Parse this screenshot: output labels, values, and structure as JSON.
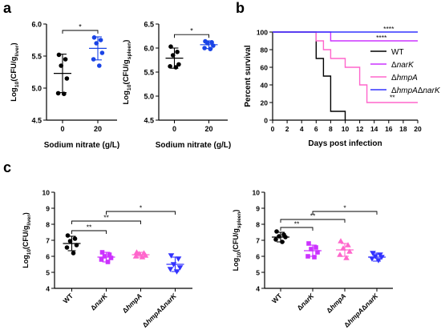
{
  "panel_letters": {
    "a": "a",
    "b": "b",
    "c": "c"
  },
  "colors": {
    "wt": "#000000",
    "narK": "#cc33ff",
    "hmpA": "#ff66cc",
    "hmpAnarK": "#3333ff",
    "mixed": "#1a44e6"
  },
  "chart_data": [
    {
      "id": "a_liver",
      "type": "scatter",
      "title": "",
      "xlabel": "Sodium nitrate (g/L)",
      "ylabel": {
        "prefix": "Log",
        "prefix_sub": "10",
        "main": "(CFU/g",
        "sub": "liver",
        "suffix": ")"
      },
      "categories": [
        "0",
        "20"
      ],
      "ylim": [
        4.5,
        6.0
      ],
      "yticks": [
        "4.5",
        "5.0",
        "5.5",
        "6.0"
      ],
      "series": [
        {
          "category": "0",
          "color": "#000000",
          "mean": 5.23,
          "sd": 0.3,
          "points": [
            5.52,
            5.45,
            5.35,
            5.15,
            4.92,
            4.91
          ]
        },
        {
          "category": "20",
          "color": "#1a44e6",
          "mean": 5.62,
          "sd": 0.18,
          "points": [
            5.79,
            5.75,
            5.7,
            5.55,
            5.45,
            5.35
          ]
        }
      ],
      "annotations": [
        {
          "from": "0",
          "to": "20",
          "y": 5.9,
          "text": "*"
        }
      ]
    },
    {
      "id": "a_spleen",
      "type": "scatter",
      "title": "",
      "xlabel": "Sodium nitrate (g/L)",
      "ylabel": {
        "prefix": "Log",
        "prefix_sub": "10",
        "main": "(CFU/g",
        "sub": "spleen",
        "suffix": ")"
      },
      "categories": [
        "0",
        "20"
      ],
      "ylim": [
        4.5,
        6.5
      ],
      "yticks": [
        "4.5",
        "5.0",
        "5.5",
        "6.0",
        "6.5"
      ],
      "series": [
        {
          "category": "0",
          "color": "#000000",
          "mean": 5.79,
          "sd": 0.21,
          "points": [
            6.03,
            5.92,
            5.85,
            5.66,
            5.62,
            5.6
          ]
        },
        {
          "category": "20",
          "color": "#1a44e6",
          "mean": 6.07,
          "sd": 0.08,
          "points": [
            6.14,
            6.12,
            6.1,
            6.05,
            6.0,
            5.98
          ]
        }
      ],
      "annotations": [
        {
          "from": "0",
          "to": "20",
          "y": 6.28,
          "text": "*"
        }
      ]
    },
    {
      "id": "b_survival",
      "type": "line",
      "title": "",
      "xlabel": "Days post infection",
      "ylabel": "Percent survival",
      "xlim": [
        0,
        20
      ],
      "ylim": [
        0,
        100
      ],
      "xticks": [
        "0",
        "2",
        "4",
        "6",
        "8",
        "10",
        "12",
        "14",
        "16",
        "18",
        "20"
      ],
      "yticks": [
        "0",
        "20",
        "40",
        "60",
        "80",
        "100"
      ],
      "series": [
        {
          "name": "WT",
          "color": "#000000",
          "steps": [
            [
              0,
              100
            ],
            [
              6,
              100
            ],
            [
              6,
              70
            ],
            [
              7,
              70
            ],
            [
              7,
              50
            ],
            [
              8,
              50
            ],
            [
              8,
              10
            ],
            [
              10,
              10
            ],
            [
              10,
              0
            ]
          ]
        },
        {
          "name": "ΔnarK",
          "color": "#cc33ff",
          "steps": [
            [
              0,
              100
            ],
            [
              8,
              100
            ],
            [
              8,
              90
            ],
            [
              20,
              90
            ]
          ]
        },
        {
          "name": "ΔhmpA",
          "color": "#ff66cc",
          "steps": [
            [
              0,
              100
            ],
            [
              6,
              100
            ],
            [
              6,
              90
            ],
            [
              7,
              90
            ],
            [
              7,
              80
            ],
            [
              8,
              80
            ],
            [
              8,
              70
            ],
            [
              10,
              70
            ],
            [
              10,
              60
            ],
            [
              12,
              60
            ],
            [
              12,
              40
            ],
            [
              13,
              40
            ],
            [
              13,
              20
            ],
            [
              20,
              20
            ]
          ]
        },
        {
          "name": "ΔhmpAΔnarK",
          "color": "#3333ff",
          "steps": [
            [
              0,
              100
            ],
            [
              20,
              100
            ]
          ]
        }
      ],
      "annotations": [
        {
          "text": "****",
          "x": 16,
          "y": 101
        },
        {
          "text": "****",
          "x": 15,
          "y": 91
        },
        {
          "text": "**",
          "x": 16.5,
          "y": 23
        }
      ]
    },
    {
      "id": "c_liver",
      "type": "scatter",
      "title": "",
      "ylabel": {
        "prefix": "Log",
        "prefix_sub": "10",
        "main": "(CFU/g",
        "sub": "liver",
        "suffix": ")"
      },
      "categories": [
        "WT",
        "ΔnarK",
        "ΔhmpA",
        "ΔhmpAΔnarK"
      ],
      "ylim": [
        4,
        10
      ],
      "yticks": [
        "4",
        "5",
        "6",
        "7",
        "8",
        "9",
        "10"
      ],
      "series": [
        {
          "category": "WT",
          "color": "#000000",
          "marker": "circle",
          "mean": 6.8,
          "sd": 0.45,
          "points": [
            7.3,
            7.1,
            6.95,
            6.7,
            6.55,
            6.2
          ]
        },
        {
          "category": "ΔnarK",
          "color": "#cc33ff",
          "marker": "square",
          "mean": 5.95,
          "sd": 0.3,
          "points": [
            6.25,
            6.1,
            6.0,
            5.9,
            5.8,
            5.65
          ]
        },
        {
          "category": "ΔhmpA",
          "color": "#ff66cc",
          "marker": "triangle-up",
          "mean": 6.1,
          "sd": 0.15,
          "points": [
            6.25,
            6.2,
            6.15,
            6.05,
            6.0,
            5.95
          ]
        },
        {
          "category": "ΔhmpAΔnarK",
          "color": "#3333ff",
          "marker": "triangle-down",
          "mean": 5.5,
          "sd": 0.45,
          "points": [
            6.05,
            5.85,
            5.5,
            5.3,
            5.2,
            5.05
          ]
        }
      ],
      "annotations": [
        {
          "from": "WT",
          "to": "ΔnarK",
          "y": 7.6,
          "text": "**"
        },
        {
          "from": "WT",
          "to": "ΔhmpA",
          "y": 8.2,
          "text": "**"
        },
        {
          "from": "ΔnarK",
          "to": "ΔhmpAΔnarK",
          "y": 8.8,
          "text": "*"
        }
      ]
    },
    {
      "id": "c_spleen",
      "type": "scatter",
      "title": "",
      "ylabel": {
        "prefix": "Log",
        "prefix_sub": "10",
        "main": "(CFU/g",
        "sub": "spleen",
        "suffix": ")"
      },
      "categories": [
        "WT",
        "ΔnarK",
        "ΔhmpA",
        "ΔhmpAΔnarK"
      ],
      "ylim": [
        4,
        10
      ],
      "yticks": [
        "4",
        "5",
        "6",
        "7",
        "8",
        "9",
        "10"
      ],
      "series": [
        {
          "category": "WT",
          "color": "#000000",
          "marker": "circle",
          "mean": 7.2,
          "sd": 0.3,
          "points": [
            7.55,
            7.35,
            7.25,
            7.2,
            7.05,
            6.9
          ]
        },
        {
          "category": "ΔnarK",
          "color": "#cc33ff",
          "marker": "square",
          "mean": 6.35,
          "sd": 0.35,
          "points": [
            6.8,
            6.55,
            6.45,
            6.25,
            6.0,
            5.95
          ]
        },
        {
          "category": "ΔhmpA",
          "color": "#ff66cc",
          "marker": "triangle-up",
          "mean": 6.4,
          "sd": 0.4,
          "points": [
            6.95,
            6.7,
            6.5,
            6.3,
            6.1,
            5.9
          ]
        },
        {
          "category": "ΔhmpAΔnarK",
          "color": "#3333ff",
          "marker": "triangle-down",
          "mean": 5.95,
          "sd": 0.25,
          "points": [
            6.2,
            6.1,
            6.0,
            5.95,
            5.85,
            5.75
          ]
        }
      ],
      "annotations": [
        {
          "from": "WT",
          "to": "ΔnarK",
          "y": 7.8,
          "text": "**"
        },
        {
          "from": "WT",
          "to": "ΔhmpA",
          "y": 8.3,
          "text": "**"
        },
        {
          "from": "ΔnarK",
          "to": "ΔhmpAΔnarK",
          "y": 8.8,
          "text": "*"
        }
      ]
    }
  ]
}
